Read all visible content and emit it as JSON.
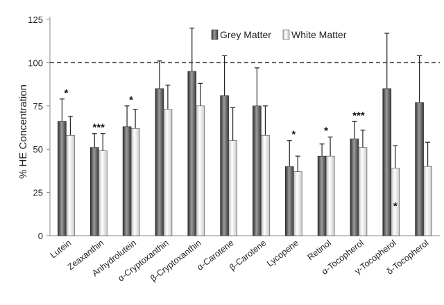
{
  "chart_data": {
    "type": "bar",
    "ylabel": "% HE Concentration",
    "ylim": [
      0,
      125
    ],
    "yticks": [
      0,
      25,
      50,
      75,
      100,
      125
    ],
    "reference_line": 100,
    "legend_position": "top-right",
    "categories": [
      "Lutein",
      "Zeaxanthin",
      "Anhydrolutein",
      "α-Cryptoxanthin",
      "β-Cryptoxanthin",
      "α-Carotene",
      "β-Carotene",
      "Lycopene",
      "Retinol",
      "α-Tocopherol",
      "γ-Tocopherol",
      "δ-Tocopherol"
    ],
    "series": [
      {
        "name": "Grey Matter",
        "values": [
          66,
          51,
          63,
          85,
          95,
          81,
          75,
          40,
          46,
          56,
          85,
          77
        ],
        "error": [
          13,
          8,
          12,
          16,
          25,
          23,
          22,
          15,
          7,
          10,
          32,
          27
        ]
      },
      {
        "name": "White Matter",
        "values": [
          58,
          49,
          62,
          73,
          75,
          55,
          58,
          37,
          46,
          51,
          39,
          40
        ],
        "error": [
          11,
          10,
          11,
          14,
          13,
          19,
          17,
          9,
          11,
          10,
          13,
          14
        ]
      }
    ],
    "annotations": [
      {
        "category": "Lutein",
        "text": "*",
        "position": "above"
      },
      {
        "category": "Zeaxanthin",
        "text": "***",
        "position": "above"
      },
      {
        "category": "Anhydrolutein",
        "text": "*",
        "position": "above"
      },
      {
        "category": "Lycopene",
        "text": "*",
        "position": "above"
      },
      {
        "category": "Retinol",
        "text": "*",
        "position": "above"
      },
      {
        "category": "α-Tocopherol",
        "text": "***",
        "position": "above"
      },
      {
        "category": "γ-Tocopherol",
        "text": "*",
        "position": "inside"
      }
    ],
    "colors": {
      "grey_matter_dark": "#3a3a3a",
      "grey_matter_light": "#9a9a9a",
      "white_matter_light": "#ffffff",
      "white_matter_dark": "#bcbcbc",
      "axis": "#888888",
      "reference_line": "#333333"
    }
  }
}
